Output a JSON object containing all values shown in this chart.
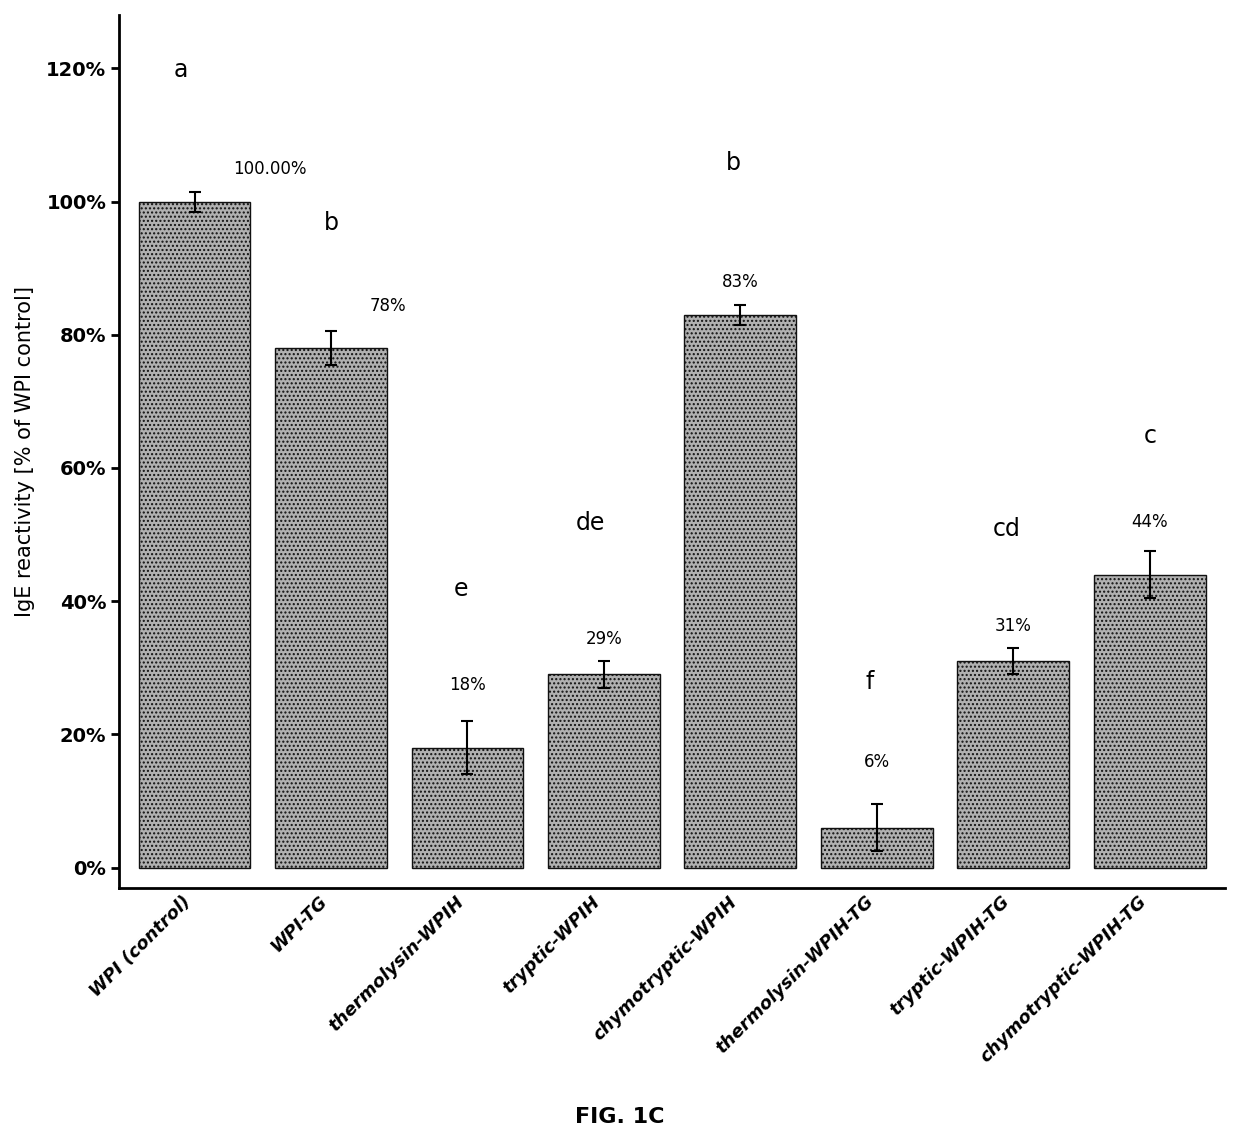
{
  "categories": [
    "WPI (control)",
    "WPI-TG",
    "thermolysin-WPIH",
    "tryptic-WPIH",
    "chymotryptic-WPIH",
    "thermolysin-WPIH-TG",
    "tryptic-WPIH-TG",
    "chymotryptic-WPIH-TG"
  ],
  "values": [
    100.0,
    78.0,
    18.0,
    29.0,
    83.0,
    6.0,
    31.0,
    44.0
  ],
  "errors": [
    1.5,
    2.5,
    4.0,
    2.0,
    1.5,
    3.5,
    2.0,
    3.5
  ],
  "labels": [
    "100.00%",
    "78%",
    "18%",
    "29%",
    "83%",
    "6%",
    "31%",
    "44%"
  ],
  "sig_labels": [
    "a",
    "b",
    "e",
    "de",
    "b",
    "f",
    "cd",
    "c"
  ],
  "bar_color": "#b0b0b0",
  "bar_edge_color": "#111111",
  "ylabel": "IgE reactivity [% of WPI control]",
  "yticks": [
    0,
    20,
    40,
    60,
    80,
    100,
    120
  ],
  "ytick_labels": [
    "0%",
    "20%",
    "40%",
    "60%",
    "80%",
    "100%",
    "120%"
  ],
  "ylim": [
    -3,
    128
  ],
  "title": "FIG. 1C",
  "background_color": "#ffffff",
  "sig_y_positions": [
    118,
    95,
    40,
    50,
    104,
    26,
    49,
    63
  ],
  "label_x_offsets": [
    0.35,
    0.35,
    0,
    0,
    0,
    0,
    0,
    0
  ]
}
